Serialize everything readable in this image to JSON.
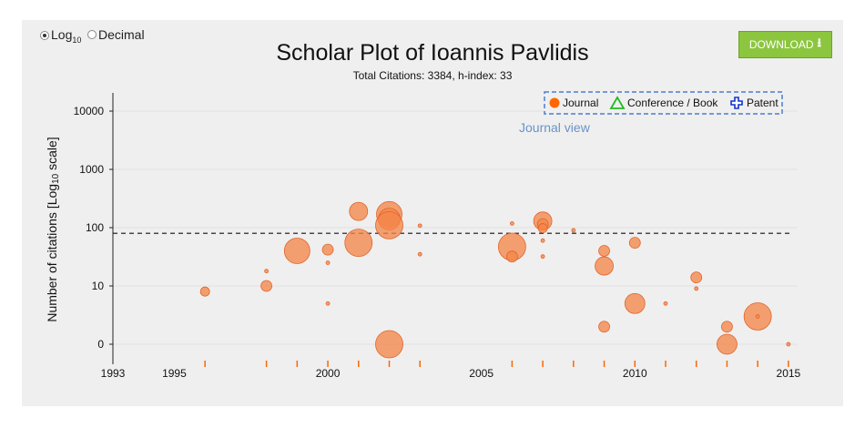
{
  "scale_toggle": {
    "options": [
      {
        "label_main": "Log",
        "label_sub": "10",
        "selected": true
      },
      {
        "label_main": "Decimal",
        "label_sub": "",
        "selected": false
      }
    ]
  },
  "download_button": {
    "label": "DOWNLOAD",
    "icon": "download-icon",
    "color": "#8cc63f"
  },
  "view_label": "Journal view",
  "chart_data": {
    "type": "scatter",
    "title": "Scholar Plot of Ioannis Pavlidis",
    "subtitle": "Total Citations: 3384, h-index: 33",
    "ylabel_main": "Number of citations [Log",
    "ylabel_sub": "10",
    "ylabel_tail": " scale]",
    "xlabel": "",
    "y_scale": "log10",
    "xlim": [
      1993,
      2015.3
    ],
    "y_ticks": [
      {
        "value": 0,
        "label": "0"
      },
      {
        "value": 10,
        "label": "10"
      },
      {
        "value": 100,
        "label": "100"
      },
      {
        "value": 1000,
        "label": "1000"
      },
      {
        "value": 10000,
        "label": "10000"
      }
    ],
    "x_ticks": [
      1993,
      1995,
      2000,
      2005,
      2010,
      2015
    ],
    "h_index_line": 80,
    "grid": true,
    "legend_position": "top-right",
    "legend": [
      {
        "label": "Journal",
        "marker": "circle",
        "color": "#ff6600"
      },
      {
        "label": "Conference / Book",
        "marker": "triangle",
        "color": "#22bb22"
      },
      {
        "label": "Patent",
        "marker": "cross",
        "color": "#1133cc"
      }
    ],
    "series": [
      {
        "marker_color": "#f4864a",
        "points": [
          {
            "x": 1996,
            "y": 8,
            "size": 5
          },
          {
            "x": 1998,
            "y": 18,
            "size": 2
          },
          {
            "x": 1998,
            "y": 10,
            "size": 6
          },
          {
            "x": 1999,
            "y": 40,
            "size": 14
          },
          {
            "x": 2000,
            "y": 42,
            "size": 6
          },
          {
            "x": 2000,
            "y": 25,
            "size": 2
          },
          {
            "x": 2000,
            "y": 5,
            "size": 2
          },
          {
            "x": 2001,
            "y": 190,
            "size": 10
          },
          {
            "x": 2001,
            "y": 55,
            "size": 15
          },
          {
            "x": 2002,
            "y": 170,
            "size": 14
          },
          {
            "x": 2002,
            "y": 140,
            "size": 12
          },
          {
            "x": 2002,
            "y": 110,
            "size": 15
          },
          {
            "x": 2002,
            "y": 0,
            "size": 15
          },
          {
            "x": 2003,
            "y": 108,
            "size": 2
          },
          {
            "x": 2003,
            "y": 35,
            "size": 2
          },
          {
            "x": 2006,
            "y": 118,
            "size": 2
          },
          {
            "x": 2006,
            "y": 47,
            "size": 15
          },
          {
            "x": 2006,
            "y": 32,
            "size": 6
          },
          {
            "x": 2007,
            "y": 130,
            "size": 10
          },
          {
            "x": 2007,
            "y": 115,
            "size": 6
          },
          {
            "x": 2007,
            "y": 98,
            "size": 5
          },
          {
            "x": 2007,
            "y": 60,
            "size": 2
          },
          {
            "x": 2007,
            "y": 32,
            "size": 2
          },
          {
            "x": 2008,
            "y": 90,
            "size": 2
          },
          {
            "x": 2009,
            "y": 40,
            "size": 6
          },
          {
            "x": 2009,
            "y": 22,
            "size": 10
          },
          {
            "x": 2009,
            "y": 2,
            "size": 6
          },
          {
            "x": 2010,
            "y": 55,
            "size": 6
          },
          {
            "x": 2010,
            "y": 5,
            "size": 11
          },
          {
            "x": 2011,
            "y": 5,
            "size": 2
          },
          {
            "x": 2012,
            "y": 14,
            "size": 6
          },
          {
            "x": 2012,
            "y": 9,
            "size": 2
          },
          {
            "x": 2013,
            "y": 2,
            "size": 6
          },
          {
            "x": 2013,
            "y": 0,
            "size": 11
          },
          {
            "x": 2014,
            "y": 3,
            "size": 15
          },
          {
            "x": 2014,
            "y": 3,
            "size": 2
          },
          {
            "x": 2015,
            "y": 0,
            "size": 2
          }
        ]
      }
    ],
    "rug_years": [
      1996,
      1998,
      1999,
      2000,
      2001,
      2002,
      2003,
      2006,
      2007,
      2008,
      2009,
      2010,
      2011,
      2012,
      2013,
      2014,
      2015
    ]
  }
}
